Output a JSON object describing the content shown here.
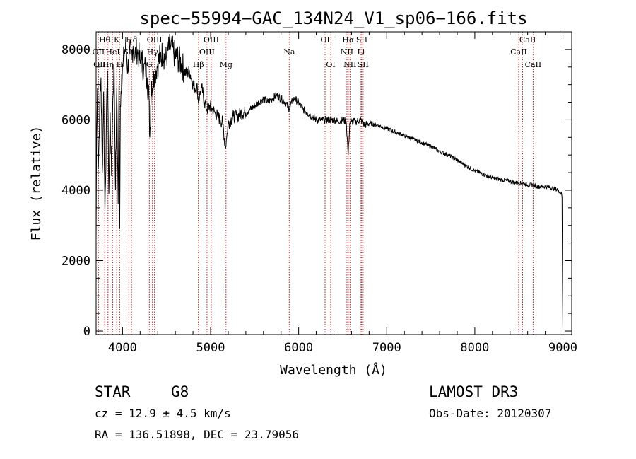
{
  "chart_data": {
    "type": "line",
    "title": "spec−55994−GAC_134N24_V1_sp06−166.fits",
    "xlabel": "Wavelength (Å)",
    "ylabel": "Flux (relative)",
    "xlim": [
      3700,
      9100
    ],
    "ylim": [
      -100,
      8500
    ],
    "xticks": [
      4000,
      5000,
      6000,
      7000,
      8000,
      9000
    ],
    "yticks": [
      0,
      2000,
      4000,
      6000,
      8000
    ],
    "series": [
      {
        "name": "flux",
        "x": [
          3700,
          3705,
          3715,
          3725,
          3740,
          3755,
          3770,
          3785,
          3800,
          3815,
          3830,
          3845,
          3860,
          3875,
          3890,
          3905,
          3920,
          3935,
          3950,
          3960,
          3968,
          3975,
          3990,
          4005,
          4020,
          4040,
          4060,
          4080,
          4100,
          4120,
          4140,
          4160,
          4180,
          4200,
          4220,
          4240,
          4260,
          4280,
          4300,
          4310,
          4320,
          4330,
          4340,
          4360,
          4380,
          4400,
          4430,
          4460,
          4490,
          4520,
          4550,
          4580,
          4610,
          4640,
          4670,
          4700,
          4730,
          4760,
          4790,
          4820,
          4850,
          4861,
          4875,
          4900,
          4930,
          4960,
          4990,
          5020,
          5050,
          5080,
          5110,
          5140,
          5167,
          5183,
          5200,
          5230,
          5260,
          5300,
          5350,
          5400,
          5450,
          5500,
          5550,
          5600,
          5650,
          5700,
          5750,
          5800,
          5850,
          5893,
          5900,
          5950,
          6000,
          6050,
          6100,
          6150,
          6200,
          6250,
          6300,
          6350,
          6400,
          6450,
          6500,
          6540,
          6563,
          6580,
          6600,
          6650,
          6700,
          6750,
          6800,
          6900,
          7000,
          7100,
          7200,
          7300,
          7400,
          7500,
          7600,
          7700,
          7800,
          7900,
          8000,
          8100,
          8200,
          8300,
          8400,
          8498,
          8542,
          8600,
          8662,
          8700,
          8800,
          8900,
          8950,
          8985,
          8990,
          8995,
          9000
        ],
        "values": [
          2600,
          5200,
          6900,
          4600,
          6300,
          7200,
          4500,
          6800,
          3400,
          5600,
          7400,
          3900,
          6200,
          4400,
          6600,
          7600,
          4000,
          6900,
          3600,
          7000,
          2900,
          6400,
          7300,
          7500,
          7900,
          8100,
          7400,
          8000,
          7700,
          8100,
          7800,
          8000,
          7900,
          7600,
          7700,
          7400,
          7500,
          7200,
          6600,
          5500,
          6400,
          7100,
          6900,
          7300,
          7400,
          7600,
          7800,
          7900,
          7700,
          8000,
          8100,
          7900,
          7800,
          7700,
          7600,
          7400,
          7300,
          7400,
          7100,
          6900,
          6900,
          6500,
          6700,
          6900,
          6500,
          6300,
          6400,
          6300,
          6200,
          6100,
          6000,
          5900,
          5200,
          5500,
          5900,
          6000,
          6100,
          6100,
          6200,
          6200,
          6300,
          6400,
          6500,
          6600,
          6500,
          6600,
          6700,
          6600,
          6500,
          6300,
          6400,
          6600,
          6500,
          6300,
          6200,
          6100,
          6000,
          6000,
          6000,
          6000,
          6000,
          5950,
          6000,
          5950,
          5000,
          5900,
          5950,
          5950,
          6000,
          5850,
          5900,
          5850,
          5750,
          5650,
          5550,
          5450,
          5350,
          5250,
          5100,
          5000,
          4850,
          4700,
          4550,
          4450,
          4350,
          4300,
          4250,
          4200,
          4200,
          4150,
          4150,
          4100,
          4100,
          4050,
          4000,
          3900,
          3800,
          1400,
          0
        ]
      }
    ],
    "lines": [
      {
        "name": "Hθ",
        "x": 3798
      },
      {
        "name": "OII",
        "x": 3727
      },
      {
        "name": "Hη",
        "x": 3835
      },
      {
        "name": "HeI",
        "x": 3889
      },
      {
        "name": "K",
        "x": 3934
      },
      {
        "name": "H",
        "x": 3968
      },
      {
        "name": "Hδ",
        "x": 4102
      },
      {
        "name": "SII",
        "x": 4072
      },
      {
        "name": "OIII",
        "x": 4363
      },
      {
        "name": "Hγ",
        "x": 4340
      },
      {
        "name": "G",
        "x": 4304
      },
      {
        "name": "Hβ",
        "x": 4861
      },
      {
        "name": "OIII",
        "x": 4959
      },
      {
        "name": "OIII",
        "x": 5007
      },
      {
        "name": "Mg",
        "x": 5175
      },
      {
        "name": "Na",
        "x": 5893
      },
      {
        "name": "OI",
        "x": 6300
      },
      {
        "name": "OI",
        "x": 6364
      },
      {
        "name": "Hα",
        "x": 6563
      },
      {
        "name": "NII",
        "x": 6548
      },
      {
        "name": "NII",
        "x": 6583
      },
      {
        "name": "Li",
        "x": 6708
      },
      {
        "name": "SII",
        "x": 6717
      },
      {
        "name": "SII",
        "x": 6731
      },
      {
        "name": "CaII",
        "x": 8498
      },
      {
        "name": "CaII",
        "x": 8542
      },
      {
        "name": "CaII",
        "x": 8662
      }
    ],
    "labels": [
      {
        "text": "Hθ",
        "x": 3798,
        "row": 1
      },
      {
        "text": "K",
        "x": 3934,
        "row": 1
      },
      {
        "text": "Hδ",
        "x": 4102,
        "row": 1
      },
      {
        "text": "OIII",
        "x": 4363,
        "row": 1
      },
      {
        "text": "OIII",
        "x": 5007,
        "row": 1
      },
      {
        "text": "OI",
        "x": 6300,
        "row": 1
      },
      {
        "text": "Hα",
        "x": 6563,
        "row": 1
      },
      {
        "text": "SII",
        "x": 6717,
        "row": 1
      },
      {
        "text": "CaII",
        "x": 8600,
        "row": 1
      },
      {
        "text": "OII",
        "x": 3727,
        "row": 2
      },
      {
        "text": "HeI",
        "x": 3889,
        "row": 2
      },
      {
        "text": "SII",
        "x": 4072,
        "row": 2
      },
      {
        "text": "Hγ",
        "x": 4340,
        "row": 2
      },
      {
        "text": "OIII",
        "x": 4959,
        "row": 2
      },
      {
        "text": "Na",
        "x": 5893,
        "row": 2
      },
      {
        "text": "NII",
        "x": 6548,
        "row": 2
      },
      {
        "text": "Li",
        "x": 6708,
        "row": 2
      },
      {
        "text": "CaII",
        "x": 8498,
        "row": 2
      },
      {
        "text": "OII",
        "x": 3740,
        "row": 3
      },
      {
        "text": "Hη",
        "x": 3835,
        "row": 3
      },
      {
        "text": "H",
        "x": 3968,
        "row": 3
      },
      {
        "text": "G",
        "x": 4304,
        "row": 3
      },
      {
        "text": "Hβ",
        "x": 4861,
        "row": 3
      },
      {
        "text": "Mg",
        "x": 5175,
        "row": 3
      },
      {
        "text": "OI",
        "x": 6364,
        "row": 3
      },
      {
        "text": "NII",
        "x": 6583,
        "row": 3
      },
      {
        "text": "SII",
        "x": 6731,
        "row": 3
      },
      {
        "text": "CaII",
        "x": 8662,
        "row": 3
      }
    ],
    "line_color": "#b22222"
  },
  "info": {
    "object_class": "STAR",
    "subclass": "G8",
    "survey": "LAMOST DR3",
    "cz": "cz = 12.9 ± 4.5 km/s",
    "obs_date": "Obs-Date: 20120307",
    "coords": "RA = 136.51898, DEC =  23.79056"
  }
}
